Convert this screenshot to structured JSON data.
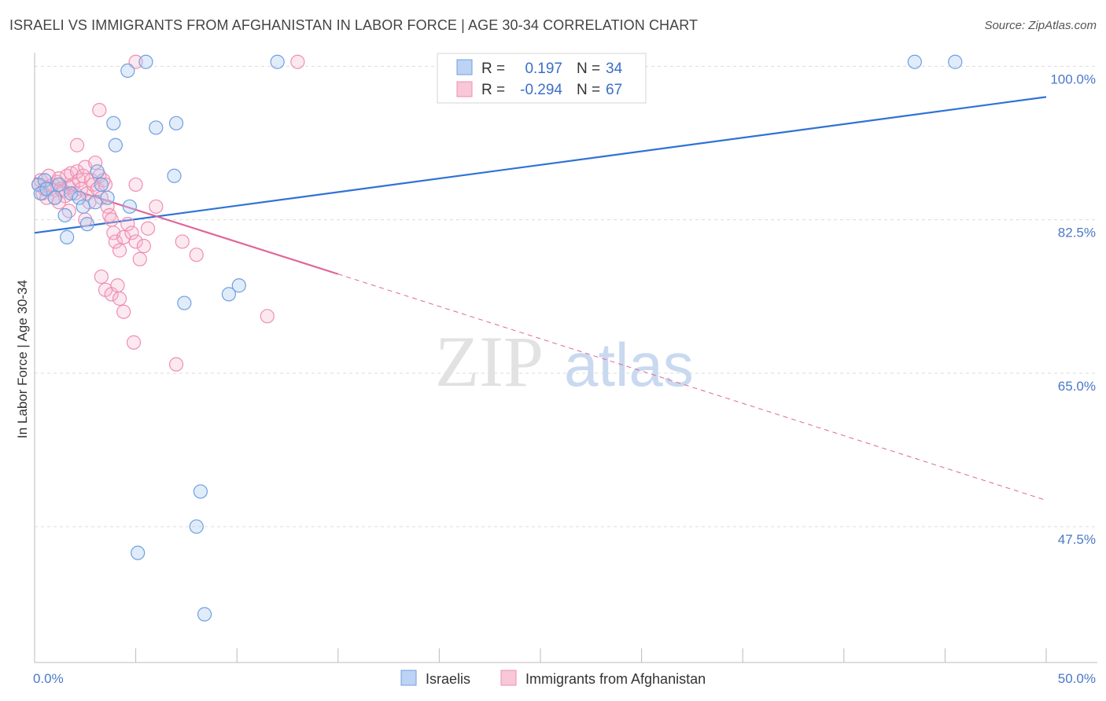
{
  "title": "ISRAELI VS IMMIGRANTS FROM AFGHANISTAN IN LABOR FORCE | AGE 30-34 CORRELATION CHART",
  "source": "Source: ZipAtlas.com",
  "watermark": {
    "zip": "ZIP",
    "atlas": "atlas"
  },
  "colors": {
    "blue": "#6f9fe0",
    "blue_line": "#2f72d6",
    "pink": "#ef8fb0",
    "pink_line": "#e0669a",
    "tick": "#4a78c8"
  },
  "legend": {
    "r_label": "R =",
    "n_label": "N =",
    "rows": [
      {
        "r": "0.197",
        "n": "34"
      },
      {
        "r": "-0.294",
        "n": "67"
      }
    ]
  },
  "chart_data": {
    "type": "scatter",
    "title": "ISRAELI VS IMMIGRANTS FROM AFGHANISTAN IN LABOR FORCE | AGE 30-34 CORRELATION CHART",
    "xlabel": "",
    "ylabel": "In Labor Force | Age 30-34",
    "xlim": [
      0,
      50
    ],
    "ylim": [
      32,
      102
    ],
    "x_tick_labels": [
      "0.0%",
      "50.0%"
    ],
    "y_ticks": [
      47.5,
      65.0,
      82.5,
      100.0
    ],
    "y_tick_labels": [
      "47.5%",
      "65.0%",
      "82.5%",
      "100.0%"
    ],
    "series": [
      {
        "name": "Israelis",
        "color": "#6f9fe0",
        "trend": {
          "x0": 0,
          "y0": 81.0,
          "x1": 50,
          "y1": 96.5
        },
        "points": [
          [
            0.2,
            86.5
          ],
          [
            0.3,
            85.5
          ],
          [
            0.5,
            87
          ],
          [
            0.6,
            86
          ],
          [
            1.0,
            85
          ],
          [
            1.2,
            86.5
          ],
          [
            1.5,
            83
          ],
          [
            1.6,
            80.5
          ],
          [
            1.8,
            85.5
          ],
          [
            2.2,
            85
          ],
          [
            2.4,
            84
          ],
          [
            2.6,
            82
          ],
          [
            3.0,
            84.5
          ],
          [
            3.1,
            88
          ],
          [
            3.3,
            86.5
          ],
          [
            3.6,
            85
          ],
          [
            3.9,
            93.5
          ],
          [
            4.0,
            91
          ],
          [
            4.6,
            99.5
          ],
          [
            4.7,
            84
          ],
          [
            5.5,
            100.5
          ],
          [
            6.0,
            93
          ],
          [
            6.9,
            87.5
          ],
          [
            7.0,
            93.5
          ],
          [
            7.4,
            73
          ],
          [
            8.2,
            51.5
          ],
          [
            8.0,
            47.5
          ],
          [
            8.4,
            37.5
          ],
          [
            5.1,
            44.5
          ],
          [
            9.6,
            74
          ],
          [
            10.1,
            75
          ],
          [
            12.0,
            100.5
          ],
          [
            43.5,
            100.5
          ],
          [
            45.5,
            100.5
          ]
        ]
      },
      {
        "name": "Immigrants from Afghanistan",
        "color": "#ef8fb0",
        "trend": {
          "x0": 0,
          "y0": 87.3,
          "x1": 15,
          "y1": 76.3,
          "dash_x1": 50,
          "dash_y1": 50.5
        },
        "points": [
          [
            0.2,
            86.5
          ],
          [
            0.3,
            87
          ],
          [
            0.4,
            85.5
          ],
          [
            0.5,
            86
          ],
          [
            0.6,
            85
          ],
          [
            0.7,
            87.5
          ],
          [
            0.8,
            86
          ],
          [
            0.9,
            86.5
          ],
          [
            1.0,
            85
          ],
          [
            1.1,
            86.8
          ],
          [
            1.2,
            87.2
          ],
          [
            1.3,
            86
          ],
          [
            1.4,
            85.8
          ],
          [
            1.5,
            85.2
          ],
          [
            1.6,
            87.5
          ],
          [
            1.7,
            86.2
          ],
          [
            1.8,
            87.8
          ],
          [
            1.9,
            86.5
          ],
          [
            2.0,
            85.5
          ],
          [
            2.1,
            88
          ],
          [
            2.2,
            87
          ],
          [
            2.3,
            86
          ],
          [
            2.4,
            87.5
          ],
          [
            2.5,
            88.5
          ],
          [
            2.6,
            85.5
          ],
          [
            2.7,
            84.5
          ],
          [
            2.8,
            87
          ],
          [
            2.9,
            86.5
          ],
          [
            3.0,
            89
          ],
          [
            3.1,
            86
          ],
          [
            3.2,
            87.5
          ],
          [
            3.3,
            85
          ],
          [
            3.4,
            87
          ],
          [
            3.5,
            86.5
          ],
          [
            3.6,
            84
          ],
          [
            3.7,
            83
          ],
          [
            3.8,
            82.5
          ],
          [
            3.9,
            81
          ],
          [
            4.0,
            80
          ],
          [
            4.2,
            79
          ],
          [
            4.4,
            80.5
          ],
          [
            4.6,
            82
          ],
          [
            4.8,
            81
          ],
          [
            5.0,
            80
          ],
          [
            5.2,
            78
          ],
          [
            5.4,
            79.5
          ],
          [
            5.6,
            81.5
          ],
          [
            3.3,
            76
          ],
          [
            3.5,
            74.5
          ],
          [
            3.8,
            74
          ],
          [
            4.1,
            75
          ],
          [
            4.2,
            73.5
          ],
          [
            4.4,
            72
          ],
          [
            4.9,
            68.5
          ],
          [
            3.2,
            95
          ],
          [
            2.1,
            91
          ],
          [
            5.0,
            86.5
          ],
          [
            7.3,
            80
          ],
          [
            8.0,
            78.5
          ],
          [
            11.5,
            71.5
          ],
          [
            13.0,
            100.5
          ],
          [
            5.0,
            100.5
          ],
          [
            1.2,
            84.5
          ],
          [
            1.7,
            83.5
          ],
          [
            2.5,
            82.5
          ],
          [
            6.0,
            84
          ],
          [
            7.0,
            66
          ]
        ]
      }
    ]
  },
  "bottom_legend": [
    {
      "label": "Israelis"
    },
    {
      "label": "Immigrants from Afghanistan"
    }
  ]
}
